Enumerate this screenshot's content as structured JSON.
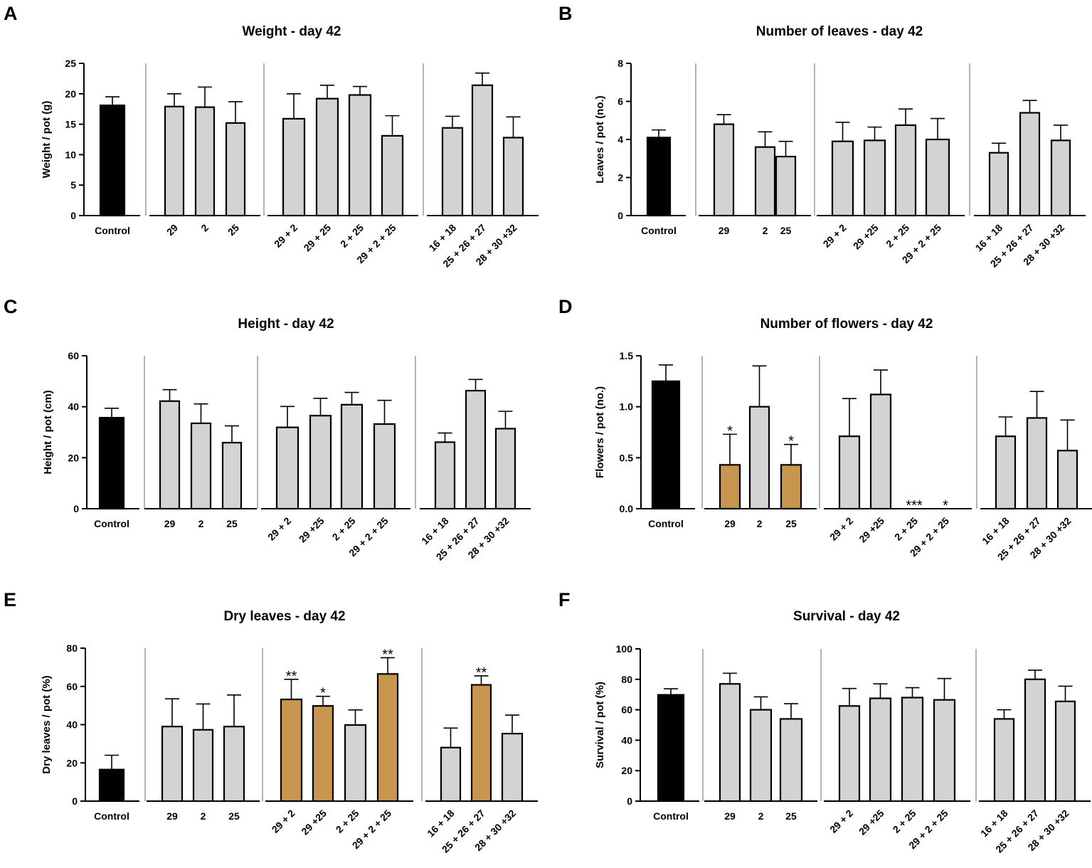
{
  "colors": {
    "control": "#000000",
    "treatment": "#d3d3d3",
    "significant": "#c8964e",
    "separator": "#8c8c8c"
  },
  "chart_data": [
    {
      "panel": "A",
      "type": "bar",
      "title": "Weight - day 42",
      "ylabel": "Weight / pot (g)",
      "xlabel": "",
      "ylim": [
        0,
        25
      ],
      "yticks": [
        0,
        5,
        10,
        15,
        20,
        25
      ],
      "grid": false,
      "groups": [
        {
          "categories": [
            "Control"
          ],
          "values": [
            18.1
          ],
          "errors": [
            1.4
          ],
          "kinds": [
            "control"
          ],
          "sig": [
            ""
          ]
        },
        {
          "categories": [
            "29",
            "2",
            "25"
          ],
          "values": [
            17.9,
            17.8,
            15.2
          ],
          "errors": [
            2.1,
            3.3,
            3.5
          ],
          "kinds": [
            "treatment",
            "treatment",
            "treatment"
          ],
          "sig": [
            "",
            "",
            ""
          ]
        },
        {
          "categories": [
            "29 + 2",
            "29 + 25",
            "2 + 25",
            "29 + 2 + 25"
          ],
          "values": [
            15.9,
            19.2,
            19.8,
            13.1
          ],
          "errors": [
            4.1,
            2.2,
            1.4,
            3.3
          ],
          "kinds": [
            "treatment",
            "treatment",
            "treatment",
            "treatment"
          ],
          "sig": [
            "",
            "",
            "",
            ""
          ]
        },
        {
          "categories": [
            "16 + 18",
            "25 + 26 + 27",
            "28 + 30 +32"
          ],
          "values": [
            14.4,
            21.4,
            12.8
          ],
          "errors": [
            1.9,
            2.0,
            3.4
          ],
          "kinds": [
            "treatment",
            "treatment",
            "treatment"
          ],
          "sig": [
            "",
            "",
            ""
          ]
        }
      ]
    },
    {
      "panel": "B",
      "type": "bar",
      "title": "Number of leaves - day 42",
      "ylabel": "Leaves / pot (no.)",
      "xlabel": "",
      "ylim": [
        0,
        8
      ],
      "yticks": [
        0,
        2,
        4,
        6,
        8
      ],
      "grid": false,
      "groups": [
        {
          "categories": [
            "Control"
          ],
          "values": [
            4.1
          ],
          "errors": [
            0.4
          ],
          "kinds": [
            "control"
          ],
          "sig": [
            ""
          ]
        },
        {
          "categories": [
            "29",
            "2",
            "25"
          ],
          "values": [
            4.8,
            3.6,
            3.1
          ],
          "errors": [
            0.5,
            0.8,
            0.8
          ],
          "kinds": [
            "treatment",
            "treatment",
            "treatment"
          ],
          "sig": [
            "",
            "",
            ""
          ]
        },
        {
          "categories": [
            "29 + 2",
            "29 +25",
            "2 + 25",
            "29 + 2 + 25"
          ],
          "values": [
            3.9,
            3.95,
            4.75,
            4.0
          ],
          "errors": [
            1.0,
            0.7,
            0.85,
            1.1
          ],
          "kinds": [
            "treatment",
            "treatment",
            "treatment",
            "treatment"
          ],
          "sig": [
            "",
            "",
            "",
            ""
          ]
        },
        {
          "categories": [
            "16 + 18",
            "25 + 26 + 27",
            "28 + 30 +32"
          ],
          "values": [
            3.3,
            5.4,
            3.95
          ],
          "errors": [
            0.5,
            0.65,
            0.8
          ],
          "kinds": [
            "treatment",
            "treatment",
            "treatment"
          ],
          "sig": [
            "",
            "",
            ""
          ]
        }
      ]
    },
    {
      "panel": "C",
      "type": "bar",
      "title": "Height - day 42",
      "ylabel": "Height / pot (cm)",
      "xlabel": "",
      "ylim": [
        0,
        60
      ],
      "yticks": [
        0,
        20,
        40,
        60
      ],
      "grid": false,
      "groups": [
        {
          "categories": [
            "Control"
          ],
          "values": [
            35.7
          ],
          "errors": [
            3.7
          ],
          "kinds": [
            "control"
          ],
          "sig": [
            ""
          ]
        },
        {
          "categories": [
            "29",
            "2",
            "25"
          ],
          "values": [
            42.2,
            33.5,
            25.9
          ],
          "errors": [
            4.5,
            7.6,
            6.6
          ],
          "kinds": [
            "treatment",
            "treatment",
            "treatment"
          ],
          "sig": [
            "",
            "",
            ""
          ]
        },
        {
          "categories": [
            "29 + 2",
            "29 +25",
            "2 + 25",
            "29 + 2 + 25"
          ],
          "values": [
            31.9,
            36.5,
            40.8,
            33.2
          ],
          "errors": [
            8.2,
            6.8,
            4.8,
            9.3
          ],
          "kinds": [
            "treatment",
            "treatment",
            "treatment",
            "treatment"
          ],
          "sig": [
            "",
            "",
            "",
            ""
          ]
        },
        {
          "categories": [
            "16 + 18",
            "25 + 26 + 27",
            "28 + 30 +32"
          ],
          "values": [
            26.1,
            46.3,
            31.4
          ],
          "errors": [
            3.6,
            4.4,
            6.8
          ],
          "kinds": [
            "treatment",
            "treatment",
            "treatment"
          ],
          "sig": [
            "",
            "",
            ""
          ]
        }
      ]
    },
    {
      "panel": "D",
      "type": "bar",
      "title": "Number of flowers - day 42",
      "ylabel": "Flowers / pot (no.)",
      "xlabel": "",
      "ylim": [
        0,
        1.5
      ],
      "yticks": [
        0,
        0.5,
        1.0,
        1.5
      ],
      "ytick_labels": [
        "0.0",
        "0.5",
        "1.0",
        "1.5"
      ],
      "grid": false,
      "groups": [
        {
          "categories": [
            "Control"
          ],
          "values": [
            1.25
          ],
          "errors": [
            0.16
          ],
          "kinds": [
            "control"
          ],
          "sig": [
            ""
          ]
        },
        {
          "categories": [
            "29",
            "2",
            "25"
          ],
          "values": [
            0.43,
            1.0,
            0.43
          ],
          "errors": [
            0.3,
            0.4,
            0.2
          ],
          "kinds": [
            "significant",
            "treatment",
            "significant"
          ],
          "sig": [
            "*",
            "",
            "*"
          ]
        },
        {
          "categories": [
            "29 + 2",
            "29 +25",
            "2 + 25",
            "29 + 2 + 25"
          ],
          "values": [
            0.71,
            1.12,
            0,
            0
          ],
          "errors": [
            0.37,
            0.24,
            0,
            0
          ],
          "kinds": [
            "treatment",
            "treatment",
            "treatment",
            "treatment"
          ],
          "sig": [
            "",
            "",
            "***",
            "*"
          ]
        },
        {
          "categories": [
            "16 + 18",
            "25 + 26 + 27",
            "28 + 30 +32"
          ],
          "values": [
            0.71,
            0.89,
            0.57
          ],
          "errors": [
            0.19,
            0.26,
            0.3
          ],
          "kinds": [
            "treatment",
            "treatment",
            "treatment"
          ],
          "sig": [
            "",
            "",
            ""
          ]
        }
      ]
    },
    {
      "panel": "E",
      "type": "bar",
      "title": "Dry leaves - day 42",
      "ylabel": "Dry leaves / pot (%)",
      "xlabel": "",
      "ylim": [
        0,
        80
      ],
      "yticks": [
        0,
        20,
        40,
        60,
        80
      ],
      "grid": false,
      "groups": [
        {
          "categories": [
            "Control"
          ],
          "values": [
            16.5
          ],
          "errors": [
            7.5
          ],
          "kinds": [
            "control"
          ],
          "sig": [
            ""
          ]
        },
        {
          "categories": [
            "29",
            "2",
            "25"
          ],
          "values": [
            39.0,
            37.3,
            39.0
          ],
          "errors": [
            14.5,
            13.5,
            16.5
          ],
          "kinds": [
            "treatment",
            "treatment",
            "treatment"
          ],
          "sig": [
            "",
            "",
            ""
          ]
        },
        {
          "categories": [
            "29 + 2",
            "29 +25",
            "2 + 25",
            "29 + 2 + 25"
          ],
          "values": [
            53.2,
            49.8,
            39.8,
            66.5
          ],
          "errors": [
            10.5,
            5.0,
            7.9,
            8.5
          ],
          "kinds": [
            "significant",
            "significant",
            "treatment",
            "significant"
          ],
          "sig": [
            "**",
            "*",
            "",
            "**"
          ]
        },
        {
          "categories": [
            "16 + 18",
            "25 + 26 + 27",
            "28 + 30 +32"
          ],
          "values": [
            28.0,
            60.8,
            35.3
          ],
          "errors": [
            10.2,
            4.7,
            9.7
          ],
          "kinds": [
            "treatment",
            "significant",
            "treatment"
          ],
          "sig": [
            "",
            "**",
            ""
          ]
        }
      ]
    },
    {
      "panel": "F",
      "type": "bar",
      "title": "Survival - day 42",
      "ylabel": "Survival / pot (%)",
      "xlabel": "",
      "ylim": [
        0,
        100
      ],
      "yticks": [
        0,
        20,
        40,
        60,
        80,
        100
      ],
      "grid": false,
      "groups": [
        {
          "categories": [
            "Control"
          ],
          "values": [
            69.8
          ],
          "errors": [
            4.0
          ],
          "kinds": [
            "control"
          ],
          "sig": [
            ""
          ]
        },
        {
          "categories": [
            "29",
            "2",
            "25"
          ],
          "values": [
            77.0,
            60.0,
            54.0
          ],
          "errors": [
            7.0,
            8.5,
            10.0
          ],
          "kinds": [
            "treatment",
            "treatment",
            "treatment"
          ],
          "sig": [
            "",
            "",
            ""
          ]
        },
        {
          "categories": [
            "29 + 2",
            "29 +25",
            "2 + 25",
            "29 + 2 + 25"
          ],
          "values": [
            62.5,
            67.5,
            68.0,
            66.5
          ],
          "errors": [
            11.5,
            9.5,
            6.5,
            14.0
          ],
          "kinds": [
            "treatment",
            "treatment",
            "treatment",
            "treatment"
          ],
          "sig": [
            "",
            "",
            "",
            ""
          ]
        },
        {
          "categories": [
            "16 + 18",
            "25 + 26 + 27",
            "28 + 30 +32"
          ],
          "values": [
            54.0,
            80.0,
            65.5
          ],
          "errors": [
            6.0,
            6.0,
            10.0
          ],
          "kinds": [
            "treatment",
            "treatment",
            "treatment"
          ],
          "sig": [
            "",
            "",
            ""
          ]
        }
      ]
    }
  ]
}
